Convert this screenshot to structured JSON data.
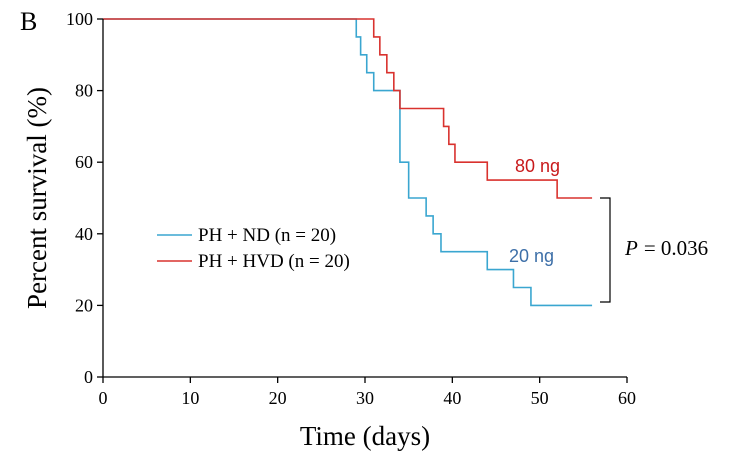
{
  "chart_data": {
    "type": "line",
    "step": true,
    "panel_label": "B",
    "xlabel": "Time (days)",
    "ylabel": "Percent survival (%)",
    "xlim": [
      0,
      60
    ],
    "ylim": [
      0,
      100
    ],
    "x_ticks": [
      0,
      10,
      20,
      30,
      40,
      50,
      60
    ],
    "y_ticks": [
      0,
      20,
      40,
      60,
      80,
      100
    ],
    "grid": false,
    "legend_position": "center-left",
    "series": [
      {
        "name": "PH + ND (n = 20)",
        "annotation": "20 ng",
        "color": "#3aa6d0",
        "label_color": "#3d6fa8",
        "x": [
          0,
          29,
          29.5,
          30.2,
          31,
          32,
          34,
          35,
          37,
          37.8,
          38.7,
          44,
          47,
          49,
          56
        ],
        "y": [
          100,
          95,
          90,
          85,
          80,
          80,
          60,
          50,
          45,
          40,
          35,
          30,
          25,
          20,
          20
        ]
      },
      {
        "name": "PH + HVD (n = 20)",
        "annotation": "80 ng",
        "color": "#d9322e",
        "label_color": "#c8191b",
        "x": [
          0,
          31,
          31.7,
          32.5,
          33.3,
          34,
          35,
          39,
          39.6,
          40.3,
          41,
          44,
          52,
          56
        ],
        "y": [
          100,
          95,
          90,
          85,
          80,
          75,
          75,
          70,
          65,
          60,
          60,
          55,
          50,
          50
        ]
      }
    ],
    "stats": {
      "label": "P",
      "value": "= 0.036"
    }
  }
}
